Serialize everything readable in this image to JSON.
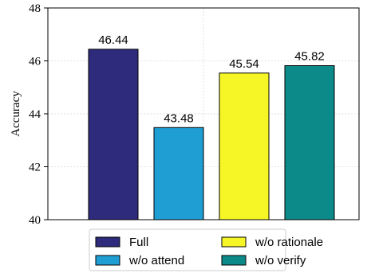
{
  "chart_data": {
    "type": "bar",
    "categories": [
      "Full",
      "w/o attend",
      "w/o rationale",
      "w/o verify"
    ],
    "values": [
      46.44,
      43.48,
      45.54,
      45.82
    ],
    "value_labels": [
      "46.44",
      "43.48",
      "45.54",
      "45.82"
    ],
    "colors": [
      "#2e2a7c",
      "#1f9ed4",
      "#f6f627",
      "#0b8a89"
    ],
    "ylabel": "Accuracy",
    "ylim": [
      40,
      48
    ],
    "yticks": [
      40,
      42,
      44,
      46,
      48
    ],
    "ytick_labels": [
      "40",
      "42",
      "44",
      "46",
      "48"
    ],
    "grid": true,
    "legend": {
      "placement": "bottom-center",
      "entries": [
        "Full",
        "w/o attend",
        "w/o rationale",
        "w/o verify"
      ]
    }
  }
}
